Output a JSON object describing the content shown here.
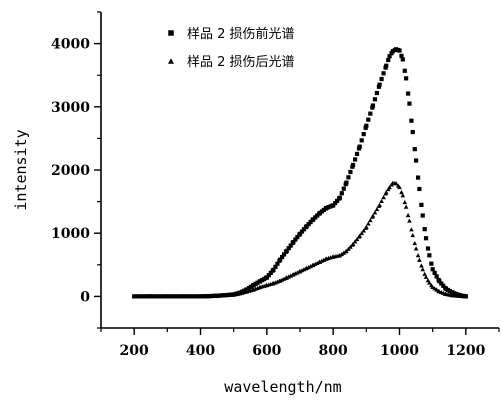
{
  "chart_data": {
    "type": "scatter",
    "xlabel": "wavelength/nm",
    "ylabel": "intensity",
    "xlim": [
      100,
      1300
    ],
    "ylim": [
      -500,
      4500
    ],
    "x_ticks": [
      200,
      400,
      600,
      800,
      1000,
      1200
    ],
    "y_ticks": [
      0,
      1000,
      2000,
      3000,
      4000
    ],
    "grid": false,
    "legend_position": "top-left",
    "series": [
      {
        "name": "样品 2 损伤前光谱",
        "marker": "square",
        "x": [
          200,
          250,
          300,
          350,
          400,
          450,
          500,
          520,
          540,
          560,
          580,
          600,
          620,
          640,
          660,
          680,
          700,
          720,
          740,
          760,
          780,
          800,
          820,
          840,
          860,
          880,
          900,
          920,
          940,
          960,
          970,
          980,
          990,
          1000,
          1010,
          1020,
          1030,
          1040,
          1050,
          1060,
          1070,
          1080,
          1090,
          1100,
          1120,
          1140,
          1160,
          1180,
          1200
        ],
        "values": [
          0,
          0,
          0,
          0,
          0,
          10,
          30,
          60,
          110,
          180,
          240,
          300,
          420,
          580,
          720,
          860,
          990,
          1110,
          1220,
          1320,
          1400,
          1440,
          1560,
          1800,
          2080,
          2370,
          2700,
          3020,
          3350,
          3650,
          3800,
          3880,
          3910,
          3890,
          3750,
          3450,
          3050,
          2600,
          2150,
          1700,
          1280,
          920,
          650,
          430,
          240,
          120,
          60,
          20,
          0
        ]
      },
      {
        "name": "样品 2 损伤后光谱",
        "marker": "triangle",
        "x": [
          200,
          250,
          300,
          350,
          400,
          450,
          500,
          520,
          540,
          560,
          580,
          600,
          620,
          640,
          660,
          680,
          700,
          720,
          740,
          760,
          780,
          800,
          820,
          840,
          860,
          880,
          900,
          920,
          940,
          960,
          970,
          980,
          990,
          1000,
          1010,
          1020,
          1030,
          1040,
          1050,
          1060,
          1070,
          1080,
          1090,
          1100,
          1120,
          1140,
          1160,
          1180,
          1200
        ],
        "values": [
          0,
          0,
          0,
          0,
          0,
          10,
          30,
          50,
          80,
          110,
          150,
          180,
          210,
          250,
          300,
          350,
          400,
          450,
          500,
          550,
          600,
          630,
          650,
          720,
          830,
          960,
          1100,
          1280,
          1450,
          1650,
          1730,
          1800,
          1790,
          1730,
          1600,
          1420,
          1200,
          970,
          760,
          580,
          430,
          310,
          220,
          150,
          80,
          40,
          20,
          10,
          0
        ]
      }
    ]
  }
}
